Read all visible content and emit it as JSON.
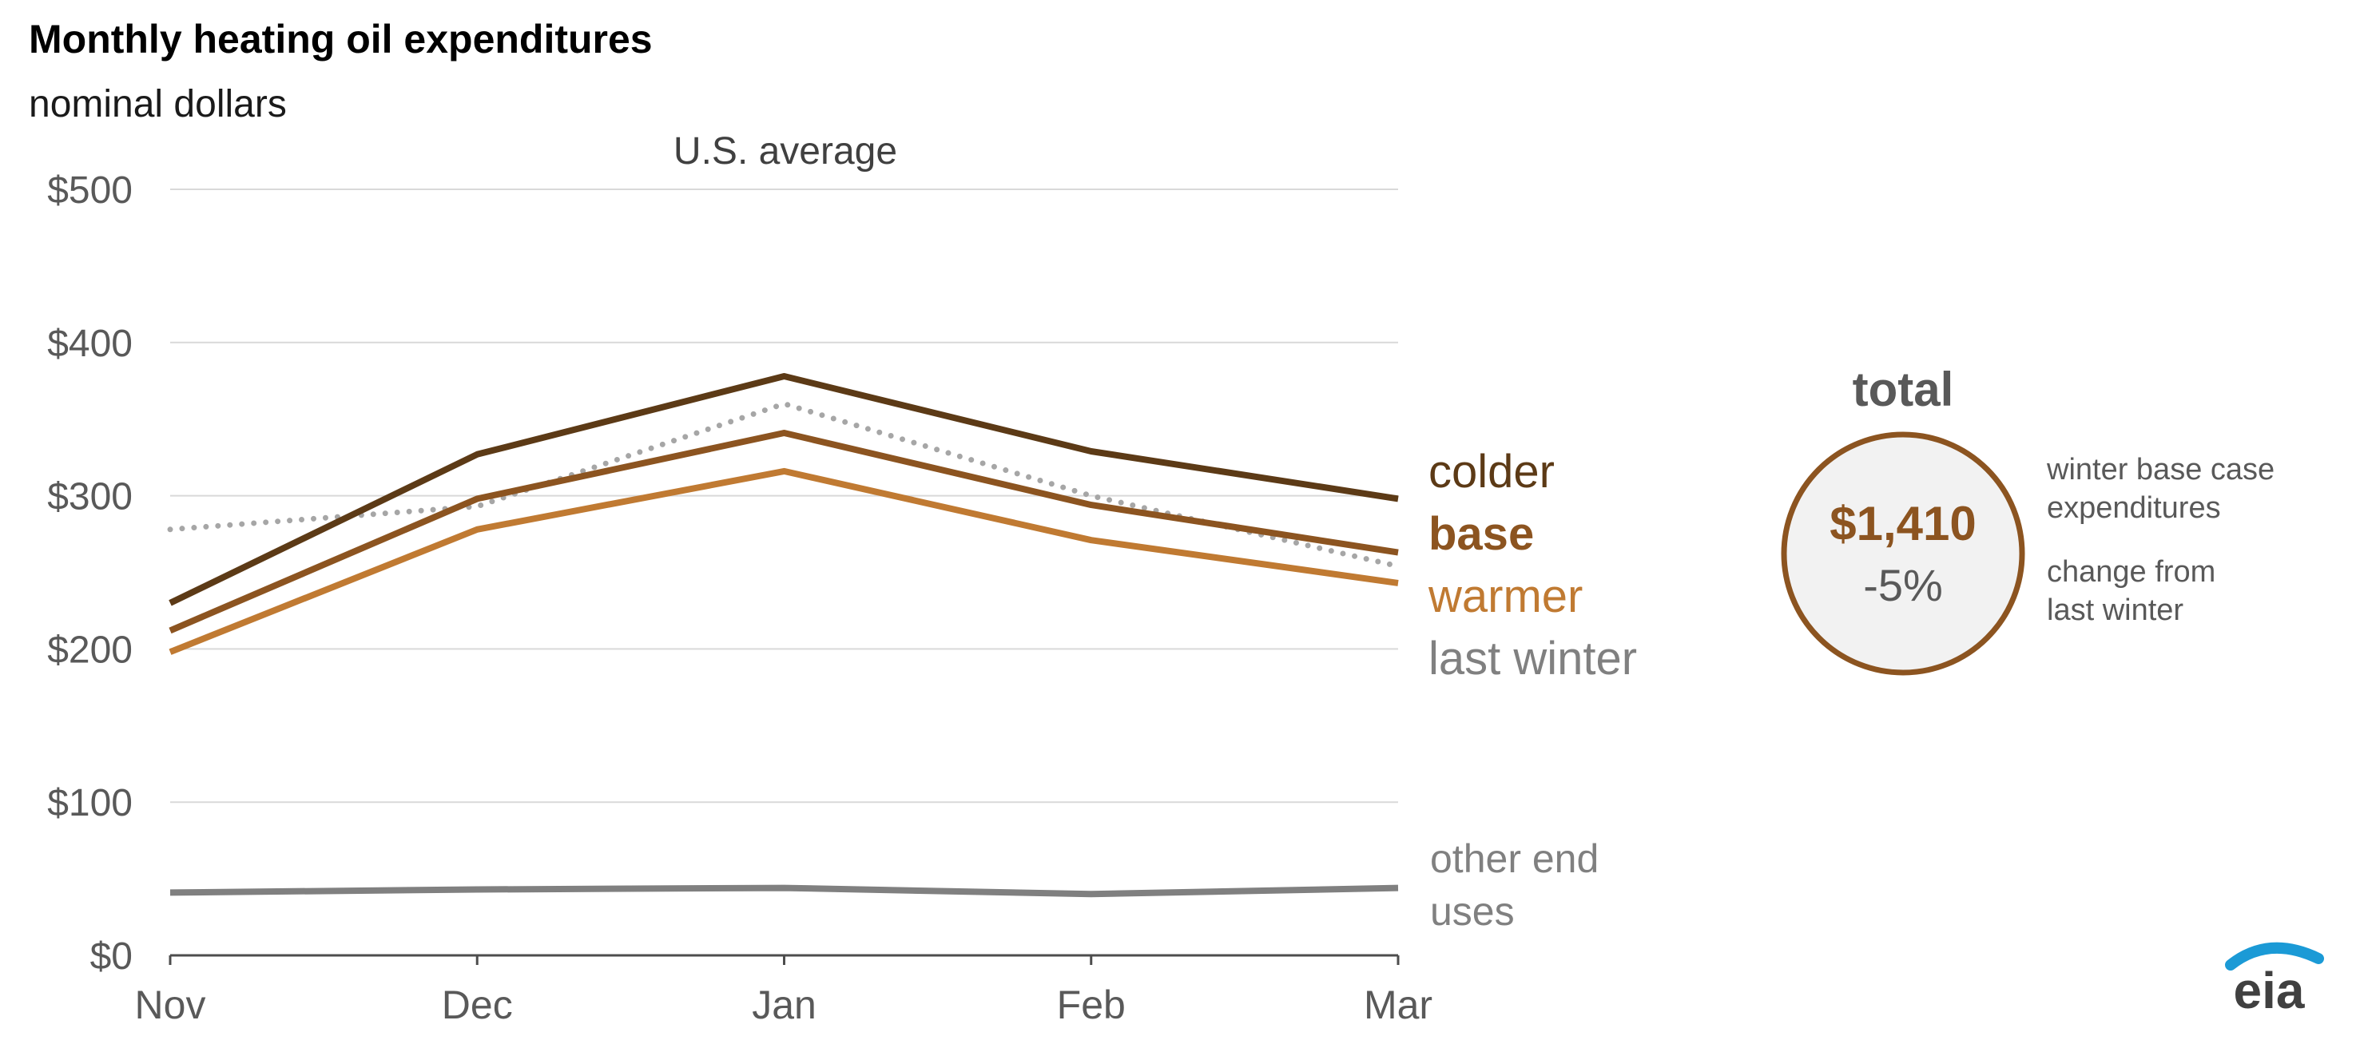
{
  "title": "Monthly heating oil expenditures",
  "subtitle": "nominal dollars",
  "region_label": "U.S. average",
  "chart_data": {
    "type": "line",
    "title": "Monthly heating oil expenditures",
    "subtitle": "nominal dollars",
    "panel_label": "U.S. average",
    "categories": [
      "Nov",
      "Dec",
      "Jan",
      "Feb",
      "Mar"
    ],
    "y_ticks": [
      "$500",
      "$400",
      "$300",
      "$200",
      "$100",
      "$0"
    ],
    "y_tick_values": [
      500,
      400,
      300,
      200,
      100,
      0
    ],
    "ylim": [
      0,
      500
    ],
    "grid": true,
    "series": [
      {
        "name": "colder",
        "values": [
          230,
          327,
          378,
          329,
          298
        ],
        "color": "#5c3a16",
        "style": "solid"
      },
      {
        "name": "base",
        "values": [
          212,
          298,
          341,
          294,
          263
        ],
        "color": "#8c5420",
        "style": "solid"
      },
      {
        "name": "warmer",
        "values": [
          198,
          278,
          316,
          271,
          243
        ],
        "color": "#c07a32",
        "style": "solid"
      },
      {
        "name": "last winter",
        "values": [
          278,
          293,
          360,
          300,
          254
        ],
        "color": "#a6a6a6",
        "style": "dotted"
      },
      {
        "name": "other end uses",
        "values": [
          41,
          43,
          44,
          40,
          44
        ],
        "color": "#808080",
        "style": "solid"
      }
    ]
  },
  "legend_labels": {
    "colder": "colder",
    "base": "base",
    "warmer": "warmer",
    "last_winter": "last winter",
    "other_line1": "other end",
    "other_line2": "uses"
  },
  "total_panel": {
    "heading": "total",
    "amount": "$1,410",
    "change": "-5%",
    "amount_note_line1": "winter base case",
    "amount_note_line2": "expenditures",
    "change_note_line1": "change from",
    "change_note_line2": "last winter",
    "ring_color": "#8c5420",
    "fill_color": "#f2f2f2"
  },
  "logo_text": "eia",
  "colors": {
    "grid": "#d9d9d9",
    "axis": "#4d4d4d",
    "tick_text": "#595959",
    "logo_arc": "#1b9ad6"
  }
}
